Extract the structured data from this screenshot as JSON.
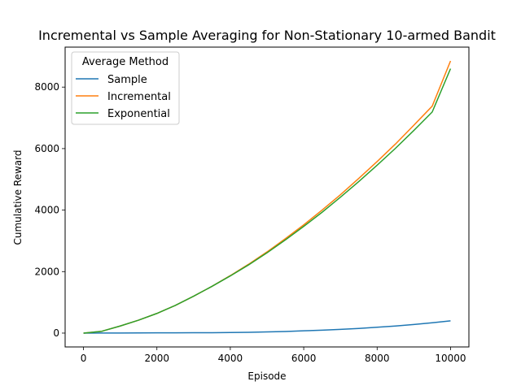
{
  "chart_data": {
    "type": "line",
    "title": "Incremental vs Sample Averaging for Non-Stationary 10-armed Bandit",
    "xlabel": "Episode",
    "ylabel": "Cumulative Reward",
    "xlim": [
      -500,
      10500
    ],
    "ylim": [
      -450,
      9300
    ],
    "xticks": [
      0,
      2000,
      4000,
      6000,
      8000,
      10000
    ],
    "yticks": [
      0,
      2000,
      4000,
      6000,
      8000
    ],
    "xtick_labels": [
      "0",
      "2000",
      "4000",
      "6000",
      "8000",
      "10000"
    ],
    "ytick_labels": [
      "0",
      "2000",
      "4000",
      "6000",
      "8000"
    ],
    "grid": false,
    "legend": {
      "title": "Average Method",
      "placement": "top-left"
    },
    "x": [
      0,
      500,
      1000,
      1500,
      2000,
      2500,
      3000,
      3500,
      4000,
      4500,
      5000,
      5500,
      6000,
      6500,
      7000,
      7500,
      8000,
      8500,
      9000,
      9500,
      10000
    ],
    "series": [
      {
        "name": "Sample",
        "color": "#1f77b4",
        "values": [
          0,
          2,
          4,
          6,
          8,
          10,
          12,
          14,
          18,
          25,
          38,
          52,
          75,
          95,
          120,
          150,
          190,
          230,
          280,
          335,
          400
        ]
      },
      {
        "name": "Incremental",
        "color": "#ff7f0e",
        "values": [
          0,
          60,
          230,
          420,
          640,
          900,
          1200,
          1520,
          1870,
          2240,
          2640,
          3070,
          3520,
          4000,
          4500,
          5030,
          5580,
          6150,
          6760,
          7380,
          8850
        ]
      },
      {
        "name": "Exponential",
        "color": "#2ca02c",
        "values": [
          0,
          60,
          230,
          420,
          640,
          900,
          1200,
          1520,
          1860,
          2220,
          2610,
          3030,
          3470,
          3930,
          4420,
          4930,
          5460,
          6010,
          6590,
          7190,
          8600
        ]
      }
    ]
  }
}
